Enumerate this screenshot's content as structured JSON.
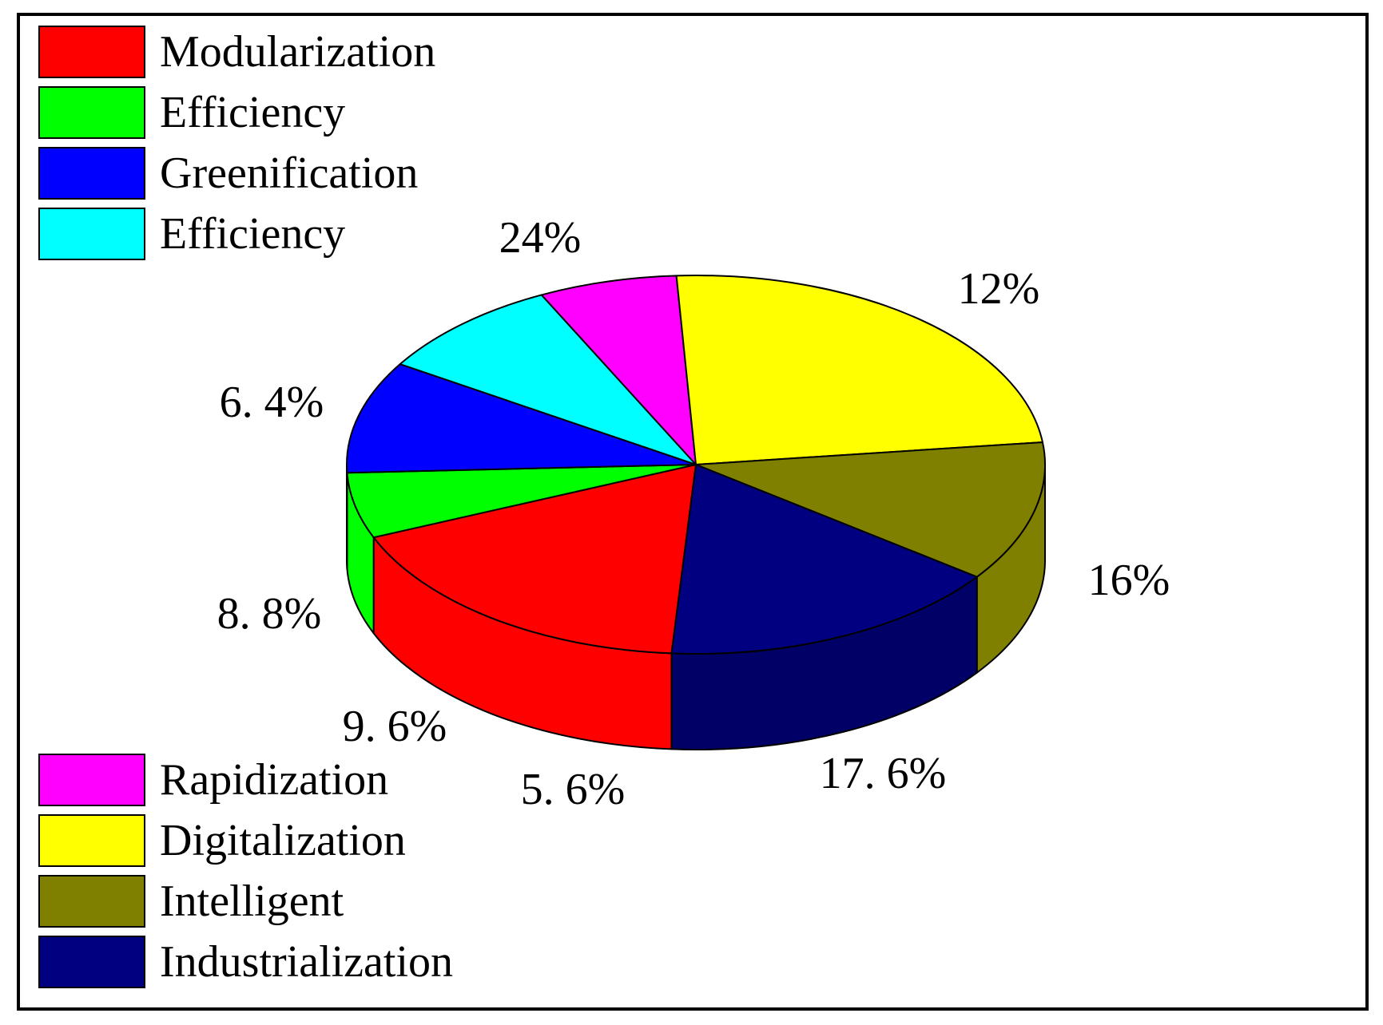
{
  "chart_data": {
    "type": "pie",
    "style": "3d",
    "legend_placement": "top-left and bottom-left",
    "slices": [
      {
        "legend": "Modularization",
        "value": 17.6,
        "label": "17. 6%",
        "color": "#ff0000"
      },
      {
        "legend": "Efficiency",
        "value": 5.6,
        "label": "5. 6%",
        "color": "#00ff00"
      },
      {
        "legend": "Greenification",
        "value": 9.6,
        "label": "9. 6%",
        "color": "#0000ff"
      },
      {
        "legend": "Efficiency",
        "value": 8.8,
        "label": "8. 8%",
        "color": "#00ffff"
      },
      {
        "legend": "Rapidization",
        "value": 6.4,
        "label": "6. 4%",
        "color": "#ff00ff"
      },
      {
        "legend": "Digitalization",
        "value": 24,
        "label": "24%",
        "color": "#ffff00"
      },
      {
        "legend": "Intelligent",
        "value": 12,
        "label": "12%",
        "color": "#808000"
      },
      {
        "legend": "Industrialization",
        "value": 16,
        "label": "16%",
        "color": "#000080"
      }
    ]
  }
}
